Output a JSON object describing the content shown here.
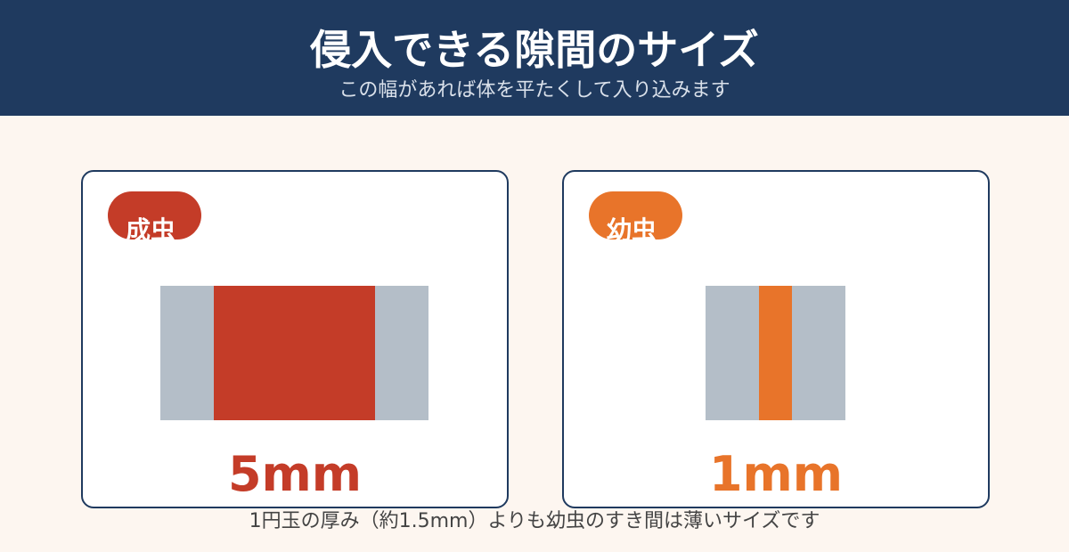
{
  "header": {
    "title": "侵入できる隙間のサイズ",
    "subtitle": "この幅があれば体を平たくして入り込みます"
  },
  "cards": [
    {
      "badge": "成虫",
      "value": "5mm"
    },
    {
      "badge": "幼虫",
      "value": "1mm"
    }
  ],
  "footer": {
    "note": "1円玉の厚み（約1.5mm）よりも幼虫のすき間は薄いサイズです"
  }
}
